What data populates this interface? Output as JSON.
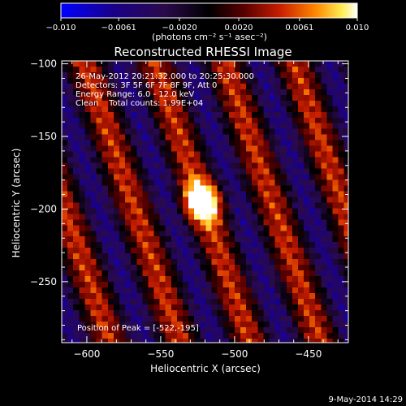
{
  "chart_data": {
    "type": "heatmap",
    "title": "Reconstructed RHESSI Image",
    "xlabel": "Heliocentric X (arcsec)",
    "ylabel": "Heliocentric Y (arcsec)",
    "xlim": [
      -617,
      -423
    ],
    "ylim": [
      -292,
      -98
    ],
    "x_ticks": [
      -600,
      -550,
      -500,
      -450
    ],
    "x_tick_labels": [
      "−600",
      "−550",
      "−500",
      "−450"
    ],
    "y_ticks": [
      -100,
      -150,
      -200,
      -250
    ],
    "y_tick_labels": [
      "−100",
      "−150",
      "−200",
      "−250"
    ],
    "colorbar": {
      "range": [
        -0.01,
        0.01
      ],
      "ticks": [
        -0.01,
        -0.0061,
        -0.002,
        0.002,
        0.0061,
        0.01
      ],
      "tick_labels": [
        "−0.010",
        "−0.0061",
        "−0.0020",
        "0.0020",
        "0.0061",
        "0.010"
      ],
      "unit_label": "(photons cm⁻² s⁻¹ asec⁻²)",
      "colormap": [
        "#0000ff",
        "#1a0088",
        "#2a0a4a",
        "#000000",
        "#5a0000",
        "#c81e00",
        "#ff8800",
        "#ffee55",
        "#ffffff"
      ]
    },
    "peak": {
      "x": -522,
      "y": -195,
      "value": 0.01
    },
    "background_pattern": "diagonal stripes alternating positive (red) and negative (purple)"
  },
  "annotations": [
    "26-May-2012 20:21:32.000 to 20:25:30.000",
    "Detectors: 3F 5F 6F 7F 8F 9F, Att 0",
    "Energy Range: 6.0 - 12.0 keV",
    "Clean    Total counts: 1.99E+04"
  ],
  "peak_label": "Position of Peak = [-522,-195]",
  "timestamp": "9-May-2014 14:29"
}
